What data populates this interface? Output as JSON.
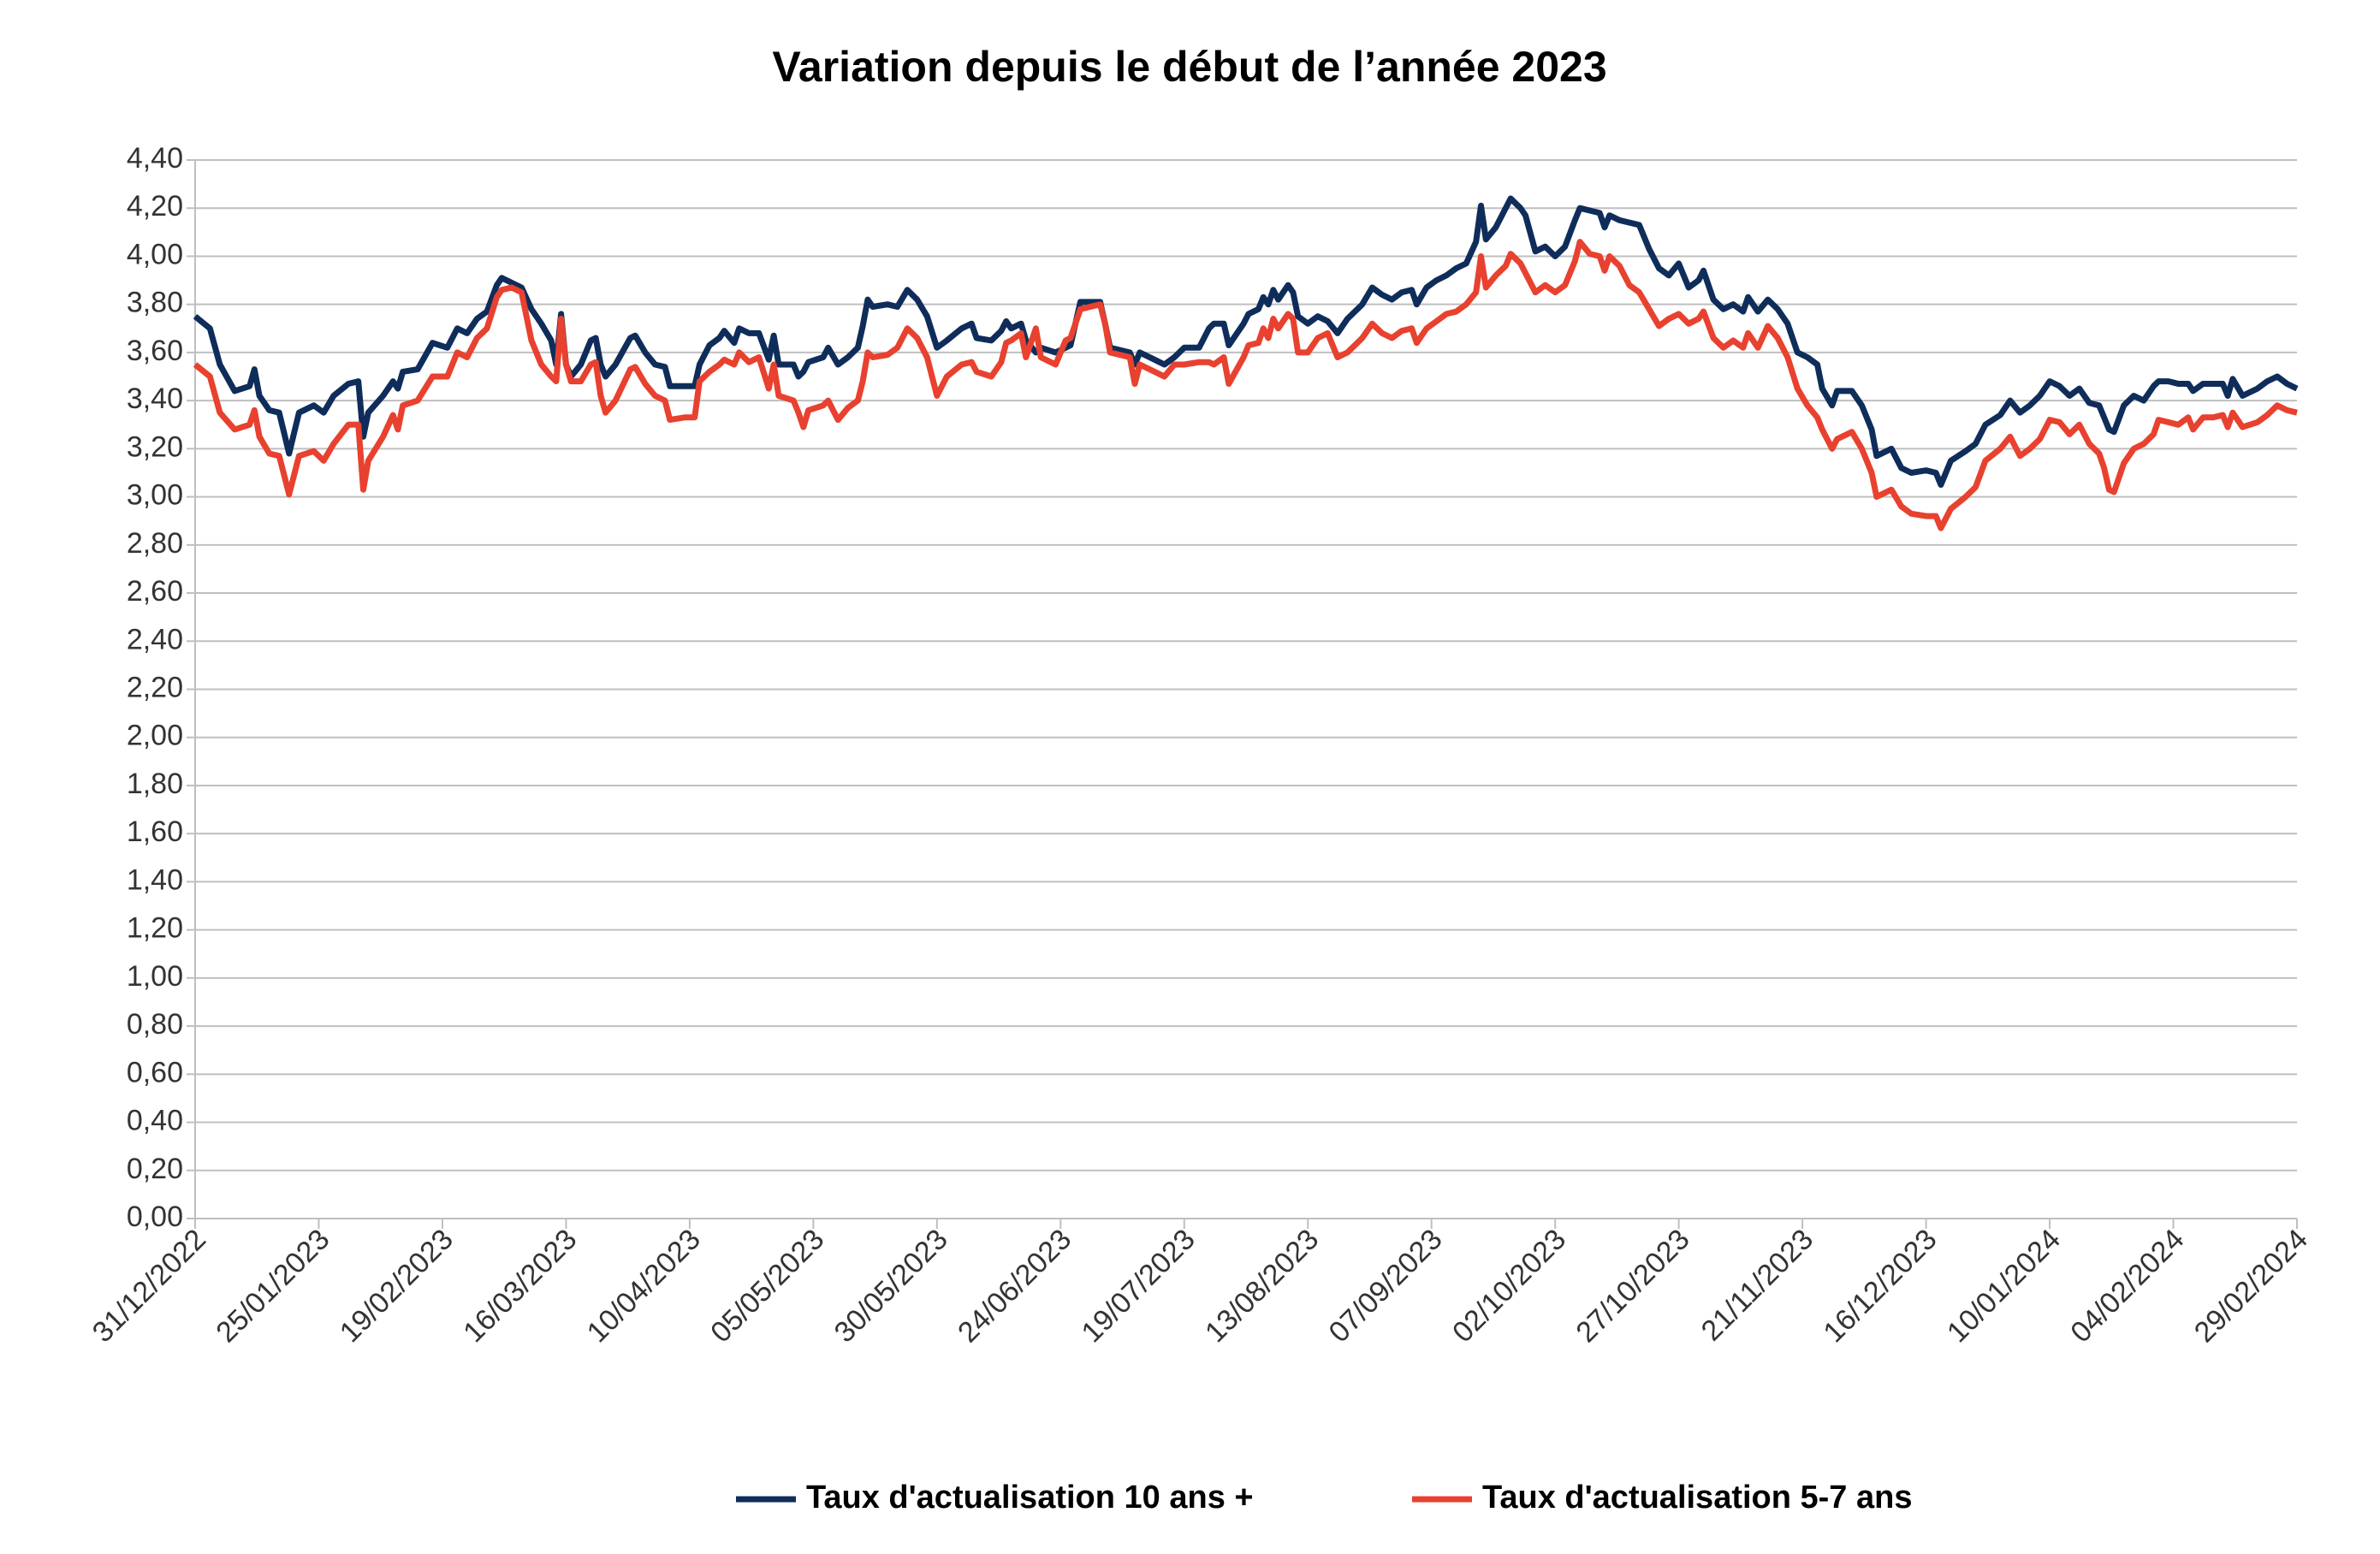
{
  "chart_data": {
    "type": "line",
    "title": "Variation depuis le début de l’année 2023",
    "x": [
      "31/12/2022",
      "03/01/2023",
      "05/01/2023",
      "08/01/2023",
      "11/01/2023",
      "12/01/2023",
      "13/01/2023",
      "15/01/2023",
      "17/01/2023",
      "19/01/2023",
      "21/01/2023",
      "24/01/2023",
      "26/01/2023",
      "28/01/2023",
      "31/01/2023",
      "02/02/2023",
      "03/02/2023",
      "04/02/2023",
      "07/02/2023",
      "09/02/2023",
      "10/02/2023",
      "11/02/2023",
      "14/02/2023",
      "17/02/2023",
      "20/02/2023",
      "22/02/2023",
      "24/02/2023",
      "26/02/2023",
      "28/02/2023",
      "02/03/2023",
      "03/03/2023",
      "05/03/2023",
      "07/03/2023",
      "09/03/2023",
      "11/03/2023",
      "13/03/2023",
      "14/03/2023",
      "15/03/2023",
      "16/03/2023",
      "17/03/2023",
      "19/03/2023",
      "21/03/2023",
      "22/03/2023",
      "23/03/2023",
      "24/03/2023",
      "26/03/2023",
      "29/03/2023",
      "30/03/2023",
      "01/04/2023",
      "03/04/2023",
      "05/04/2023",
      "06/04/2023",
      "09/04/2023",
      "11/04/2023",
      "12/04/2023",
      "14/04/2023",
      "16/04/2023",
      "17/04/2023",
      "19/04/2023",
      "20/04/2023",
      "22/04/2023",
      "24/04/2023",
      "26/04/2023",
      "27/04/2023",
      "28/04/2023",
      "01/05/2023",
      "02/05/2023",
      "03/05/2023",
      "04/05/2023",
      "07/05/2023",
      "08/05/2023",
      "10/05/2023",
      "12/05/2023",
      "14/05/2023",
      "15/05/2023",
      "16/05/2023",
      "17/05/2023",
      "20/05/2023",
      "22/05/2023",
      "24/05/2023",
      "26/05/2023",
      "28/05/2023",
      "30/05/2023",
      "01/06/2023",
      "04/06/2023",
      "06/06/2023",
      "07/06/2023",
      "10/06/2023",
      "12/06/2023",
      "13/06/2023",
      "14/06/2023",
      "16/06/2023",
      "17/06/2023",
      "19/06/2023",
      "20/06/2023",
      "23/06/2023",
      "25/06/2023",
      "26/06/2023",
      "28/06/2023",
      "02/07/2023",
      "03/07/2023",
      "04/07/2023",
      "08/07/2023",
      "09/07/2023",
      "10/07/2023",
      "13/07/2023",
      "15/07/2023",
      "17/07/2023",
      "19/07/2023",
      "22/07/2023",
      "24/07/2023",
      "25/07/2023",
      "27/07/2023",
      "28/07/2023",
      "31/07/2023",
      "01/08/2023",
      "03/08/2023",
      "04/08/2023",
      "05/08/2023",
      "06/08/2023",
      "07/08/2023",
      "09/08/2023",
      "10/08/2023",
      "11/08/2023",
      "13/08/2023",
      "15/08/2023",
      "17/08/2023",
      "19/08/2023",
      "21/08/2023",
      "24/08/2023",
      "26/08/2023",
      "28/08/2023",
      "30/08/2023",
      "01/09/2023",
      "03/09/2023",
      "04/09/2023",
      "06/09/2023",
      "08/09/2023",
      "10/09/2023",
      "12/09/2023",
      "14/09/2023",
      "16/09/2023",
      "17/09/2023",
      "18/09/2023",
      "20/09/2023",
      "22/09/2023",
      "23/09/2023",
      "25/09/2023",
      "26/09/2023",
      "28/09/2023",
      "30/09/2023",
      "02/10/2023",
      "04/10/2023",
      "06/10/2023",
      "07/10/2023",
      "09/10/2023",
      "11/10/2023",
      "12/10/2023",
      "13/10/2023",
      "15/10/2023",
      "17/10/2023",
      "19/10/2023",
      "21/10/2023",
      "23/10/2023",
      "25/10/2023",
      "27/10/2023",
      "29/10/2023",
      "31/10/2023",
      "01/11/2023",
      "03/11/2023",
      "05/11/2023",
      "07/11/2023",
      "09/11/2023",
      "10/11/2023",
      "12/11/2023",
      "14/11/2023",
      "16/11/2023",
      "18/11/2023",
      "20/11/2023",
      "22/11/2023",
      "24/11/2023",
      "25/11/2023",
      "27/11/2023",
      "28/11/2023",
      "01/12/2023",
      "03/12/2023",
      "05/12/2023",
      "06/12/2023",
      "09/12/2023",
      "11/12/2023",
      "13/12/2023",
      "16/12/2023",
      "18/12/2023",
      "19/12/2023",
      "21/12/2023",
      "24/12/2023",
      "26/12/2023",
      "28/12/2023",
      "31/12/2023",
      "02/01/2024",
      "04/01/2024",
      "06/01/2024",
      "08/01/2024",
      "10/01/2024",
      "12/01/2024",
      "14/01/2024",
      "16/01/2024",
      "18/01/2024",
      "20/01/2024",
      "21/01/2024",
      "22/01/2024",
      "23/01/2024",
      "25/01/2024",
      "27/01/2024",
      "29/01/2024",
      "31/01/2024",
      "01/02/2024",
      "03/02/2024",
      "05/02/2024",
      "07/02/2024",
      "08/02/2024",
      "10/02/2024",
      "12/02/2024",
      "14/02/2024",
      "15/02/2024",
      "16/02/2024",
      "18/02/2024",
      "21/02/2024",
      "23/02/2024",
      "25/02/2024",
      "27/02/2024",
      "29/02/2024"
    ],
    "series": [
      {
        "name": "Taux d'actualisation 10 ans +",
        "color": "#0f2d5a",
        "values": [
          3.75,
          3.7,
          3.55,
          3.44,
          3.46,
          3.53,
          3.42,
          3.36,
          3.35,
          3.18,
          3.35,
          3.38,
          3.35,
          3.42,
          3.47,
          3.48,
          3.25,
          3.35,
          3.42,
          3.48,
          3.45,
          3.52,
          3.53,
          3.64,
          3.62,
          3.7,
          3.68,
          3.74,
          3.77,
          3.88,
          3.91,
          3.89,
          3.87,
          3.78,
          3.72,
          3.65,
          3.55,
          3.76,
          3.55,
          3.5,
          3.55,
          3.65,
          3.66,
          3.55,
          3.5,
          3.55,
          3.66,
          3.67,
          3.6,
          3.55,
          3.54,
          3.46,
          3.46,
          3.46,
          3.55,
          3.63,
          3.66,
          3.69,
          3.64,
          3.7,
          3.68,
          3.68,
          3.57,
          3.67,
          3.55,
          3.55,
          3.5,
          3.52,
          3.56,
          3.58,
          3.62,
          3.55,
          3.58,
          3.62,
          3.71,
          3.82,
          3.79,
          3.8,
          3.79,
          3.86,
          3.82,
          3.75,
          3.62,
          3.65,
          3.7,
          3.72,
          3.66,
          3.65,
          3.69,
          3.73,
          3.7,
          3.72,
          3.65,
          3.6,
          3.62,
          3.6,
          3.62,
          3.63,
          3.81,
          3.81,
          3.72,
          3.62,
          3.6,
          3.55,
          3.6,
          3.57,
          3.55,
          3.58,
          3.62,
          3.62,
          3.7,
          3.72,
          3.72,
          3.63,
          3.72,
          3.76,
          3.78,
          3.83,
          3.8,
          3.86,
          3.82,
          3.88,
          3.85,
          3.75,
          3.72,
          3.75,
          3.73,
          3.68,
          3.74,
          3.8,
          3.87,
          3.84,
          3.82,
          3.85,
          3.86,
          3.8,
          3.87,
          3.9,
          3.92,
          3.95,
          3.97,
          4.06,
          4.21,
          4.07,
          4.12,
          4.2,
          4.24,
          4.2,
          4.17,
          4.02,
          4.04,
          4.0,
          4.04,
          4.15,
          4.2,
          4.19,
          4.18,
          4.12,
          4.17,
          4.15,
          4.14,
          4.13,
          4.03,
          3.95,
          3.92,
          3.97,
          3.87,
          3.9,
          3.94,
          3.82,
          3.78,
          3.8,
          3.77,
          3.83,
          3.77,
          3.82,
          3.78,
          3.72,
          3.6,
          3.58,
          3.55,
          3.45,
          3.38,
          3.44,
          3.44,
          3.38,
          3.28,
          3.17,
          3.2,
          3.12,
          3.1,
          3.11,
          3.1,
          3.05,
          3.15,
          3.19,
          3.22,
          3.3,
          3.34,
          3.4,
          3.35,
          3.38,
          3.42,
          3.48,
          3.46,
          3.42,
          3.45,
          3.39,
          3.38,
          3.33,
          3.28,
          3.27,
          3.38,
          3.42,
          3.4,
          3.46,
          3.48,
          3.48,
          3.47,
          3.47,
          3.44,
          3.47,
          3.47,
          3.47,
          3.42,
          3.49,
          3.42,
          3.45,
          3.48,
          3.5,
          3.47,
          3.45
        ]
      },
      {
        "name": "Taux d'actualisation 5-7 ans",
        "color": "#e8412f",
        "values": [
          3.55,
          3.5,
          3.35,
          3.28,
          3.3,
          3.36,
          3.25,
          3.18,
          3.17,
          3.01,
          3.17,
          3.19,
          3.15,
          3.22,
          3.3,
          3.3,
          3.03,
          3.15,
          3.25,
          3.34,
          3.28,
          3.38,
          3.4,
          3.5,
          3.5,
          3.6,
          3.58,
          3.66,
          3.7,
          3.83,
          3.86,
          3.87,
          3.85,
          3.65,
          3.55,
          3.5,
          3.48,
          3.74,
          3.55,
          3.48,
          3.48,
          3.55,
          3.56,
          3.42,
          3.35,
          3.4,
          3.53,
          3.54,
          3.47,
          3.42,
          3.4,
          3.32,
          3.33,
          3.33,
          3.48,
          3.52,
          3.55,
          3.57,
          3.55,
          3.6,
          3.56,
          3.58,
          3.45,
          3.55,
          3.42,
          3.4,
          3.35,
          3.29,
          3.36,
          3.38,
          3.4,
          3.32,
          3.37,
          3.4,
          3.48,
          3.6,
          3.58,
          3.59,
          3.62,
          3.7,
          3.66,
          3.58,
          3.42,
          3.5,
          3.55,
          3.56,
          3.52,
          3.5,
          3.56,
          3.64,
          3.65,
          3.68,
          3.58,
          3.7,
          3.58,
          3.55,
          3.65,
          3.66,
          3.78,
          3.8,
          3.72,
          3.6,
          3.58,
          3.47,
          3.55,
          3.52,
          3.5,
          3.55,
          3.55,
          3.56,
          3.56,
          3.55,
          3.58,
          3.47,
          3.58,
          3.63,
          3.64,
          3.7,
          3.66,
          3.74,
          3.7,
          3.76,
          3.74,
          3.6,
          3.6,
          3.66,
          3.68,
          3.58,
          3.6,
          3.66,
          3.72,
          3.68,
          3.66,
          3.69,
          3.7,
          3.64,
          3.7,
          3.73,
          3.76,
          3.77,
          3.8,
          3.85,
          4.0,
          3.87,
          3.92,
          3.96,
          4.01,
          3.97,
          3.93,
          3.85,
          3.88,
          3.85,
          3.88,
          3.98,
          4.06,
          4.01,
          4.0,
          3.94,
          4.0,
          3.96,
          3.88,
          3.85,
          3.78,
          3.71,
          3.74,
          3.76,
          3.72,
          3.74,
          3.77,
          3.66,
          3.62,
          3.65,
          3.62,
          3.68,
          3.62,
          3.71,
          3.66,
          3.58,
          3.45,
          3.38,
          3.33,
          3.28,
          3.2,
          3.24,
          3.27,
          3.2,
          3.1,
          3.0,
          3.03,
          2.96,
          2.93,
          2.92,
          2.92,
          2.87,
          2.95,
          3.0,
          3.04,
          3.15,
          3.2,
          3.25,
          3.17,
          3.2,
          3.24,
          3.32,
          3.31,
          3.26,
          3.3,
          3.22,
          3.18,
          3.12,
          3.03,
          3.02,
          3.14,
          3.2,
          3.22,
          3.26,
          3.32,
          3.31,
          3.3,
          3.33,
          3.28,
          3.33,
          3.33,
          3.34,
          3.29,
          3.35,
          3.29,
          3.31,
          3.34,
          3.38,
          3.36,
          3.35
        ]
      }
    ],
    "xlim": [
      "31/12/2022",
      "29/02/2024"
    ],
    "xticks": [
      "31/12/2022",
      "25/01/2023",
      "19/02/2023",
      "16/03/2023",
      "10/04/2023",
      "05/05/2023",
      "30/05/2023",
      "24/06/2023",
      "19/07/2023",
      "13/08/2023",
      "07/09/2023",
      "02/10/2023",
      "27/10/2023",
      "21/11/2023",
      "16/12/2023",
      "10/01/2024",
      "04/02/2024",
      "29/02/2024"
    ],
    "ylim": [
      0,
      4.4
    ],
    "yticks": [
      {
        "value": 0,
        "label": "0,00"
      },
      {
        "value": 0.2,
        "label": "0,20"
      },
      {
        "value": 0.4,
        "label": "0,40"
      },
      {
        "value": 0.6,
        "label": "0,60"
      },
      {
        "value": 0.8,
        "label": "0,80"
      },
      {
        "value": 1,
        "label": "1,00"
      },
      {
        "value": 1.2,
        "label": "1,20"
      },
      {
        "value": 1.4,
        "label": "1,40"
      },
      {
        "value": 1.6,
        "label": "1,60"
      },
      {
        "value": 1.8,
        "label": "1,80"
      },
      {
        "value": 2,
        "label": "2,00"
      },
      {
        "value": 2.2,
        "label": "2,20"
      },
      {
        "value": 2.4,
        "label": "2,40"
      },
      {
        "value": 2.6,
        "label": "2,60"
      },
      {
        "value": 2.8,
        "label": "2,80"
      },
      {
        "value": 3,
        "label": "3,00"
      },
      {
        "value": 3.2,
        "label": "3,20"
      },
      {
        "value": 3.4,
        "label": "3,40"
      },
      {
        "value": 3.6,
        "label": "3,60"
      },
      {
        "value": 3.8,
        "label": "3,80"
      },
      {
        "value": 4,
        "label": "4,00"
      },
      {
        "value": 4.2,
        "label": "4,20"
      },
      {
        "value": 4.4,
        "label": "4,40"
      }
    ],
    "grid": true,
    "legend": "bottom"
  }
}
